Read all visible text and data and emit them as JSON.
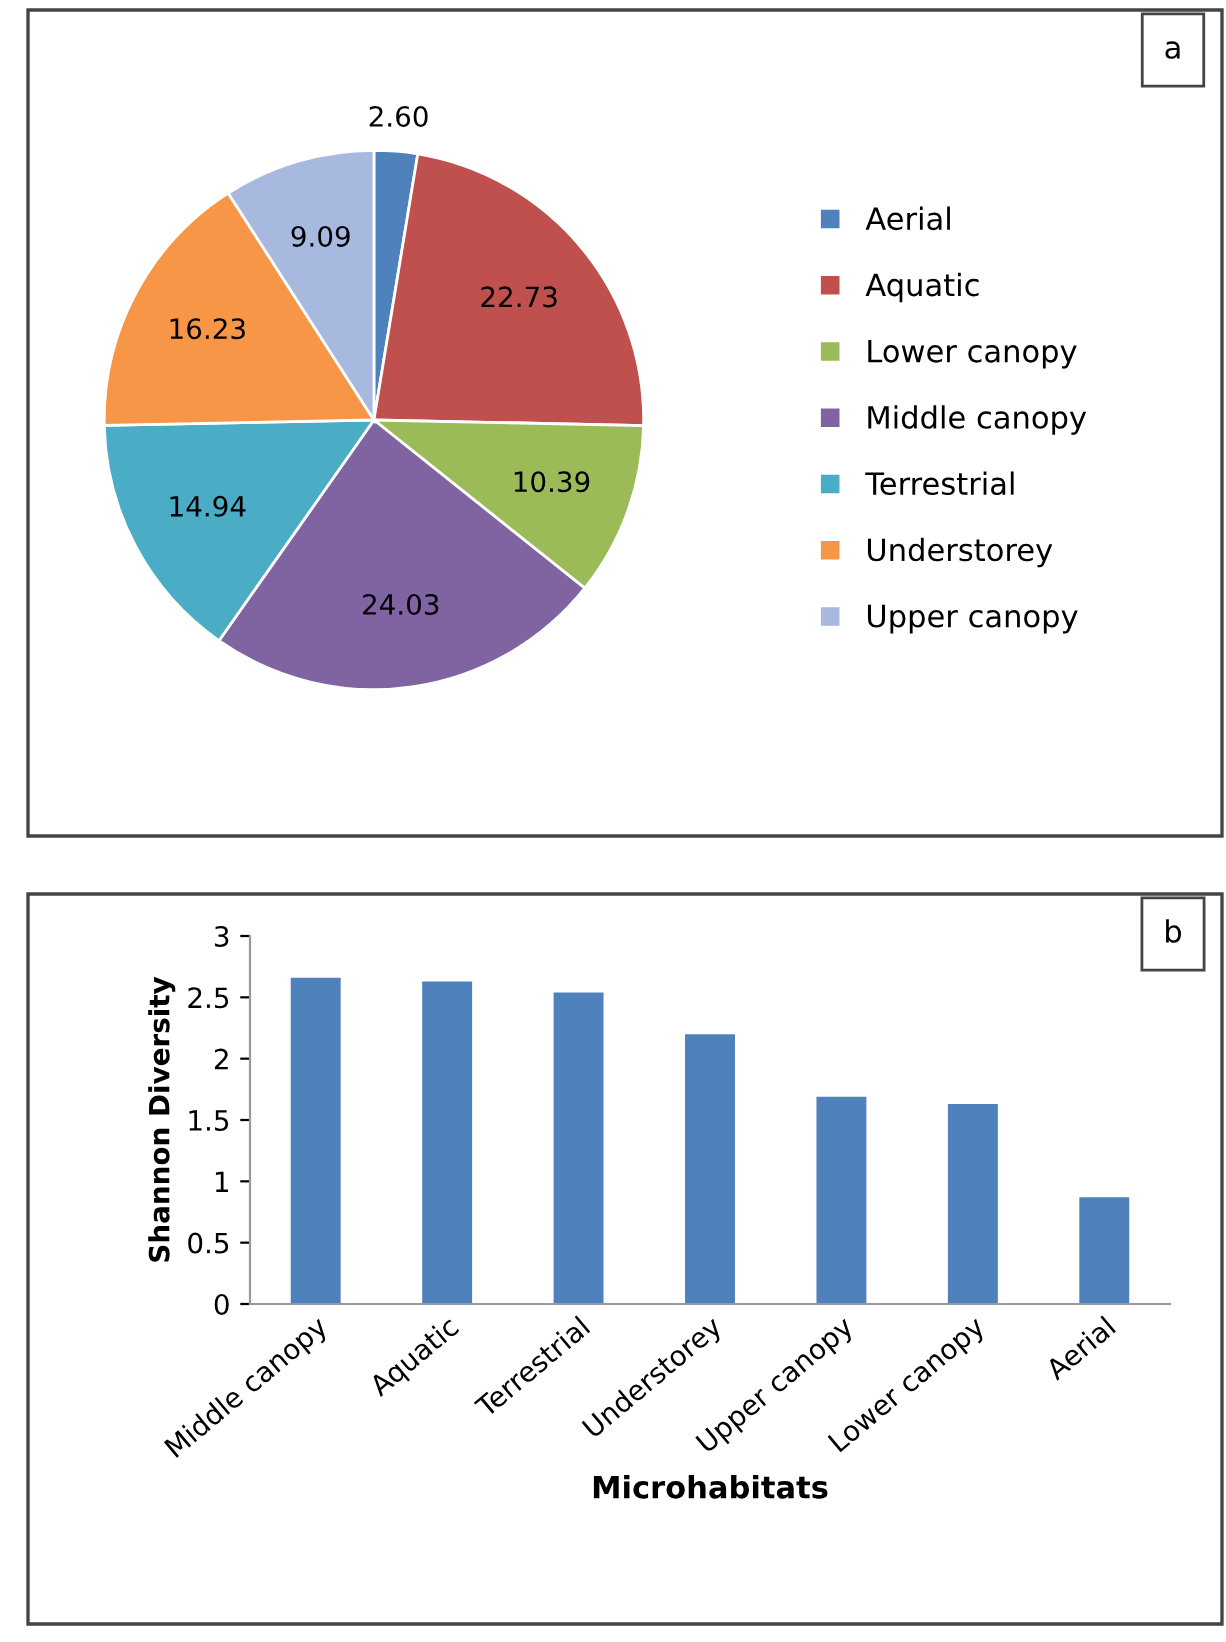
{
  "chart_data": [
    {
      "type": "pie",
      "categories": [
        "Aerial",
        "Aquatic",
        "Lower canopy",
        "Middle canopy",
        "Terrestrial",
        "Understorey",
        "Upper canopy"
      ],
      "values": [
        2.6,
        22.73,
        10.39,
        24.03,
        14.94,
        16.23,
        9.09
      ],
      "colors": [
        "#4f81bd",
        "#c0504d",
        "#9bbb59",
        "#8064a2",
        "#4bacc6",
        "#f79646",
        "#a7b9de"
      ],
      "value_labels": [
        "2.60",
        "22.73",
        "10.39",
        "24.03",
        "14.94",
        "16.23",
        "9.09"
      ],
      "legend": "right",
      "annotations": [
        "a"
      ]
    },
    {
      "type": "bar",
      "categories": [
        "Middle canopy",
        "Aquatic",
        "Terrestrial",
        "Understorey",
        "Upper canopy",
        "Lower canopy",
        "Aerial"
      ],
      "values": [
        2.66,
        2.63,
        2.54,
        2.2,
        1.69,
        1.63,
        0.87
      ],
      "color": "#4f81bd",
      "xlabel": "Microhabitats",
      "ylabel": "Shannon Diversity",
      "ylim": [
        0,
        3
      ],
      "yticks": [
        0,
        0.5,
        1,
        1.5,
        2,
        2.5,
        3
      ],
      "grid": false,
      "annotations": [
        "b"
      ]
    }
  ]
}
